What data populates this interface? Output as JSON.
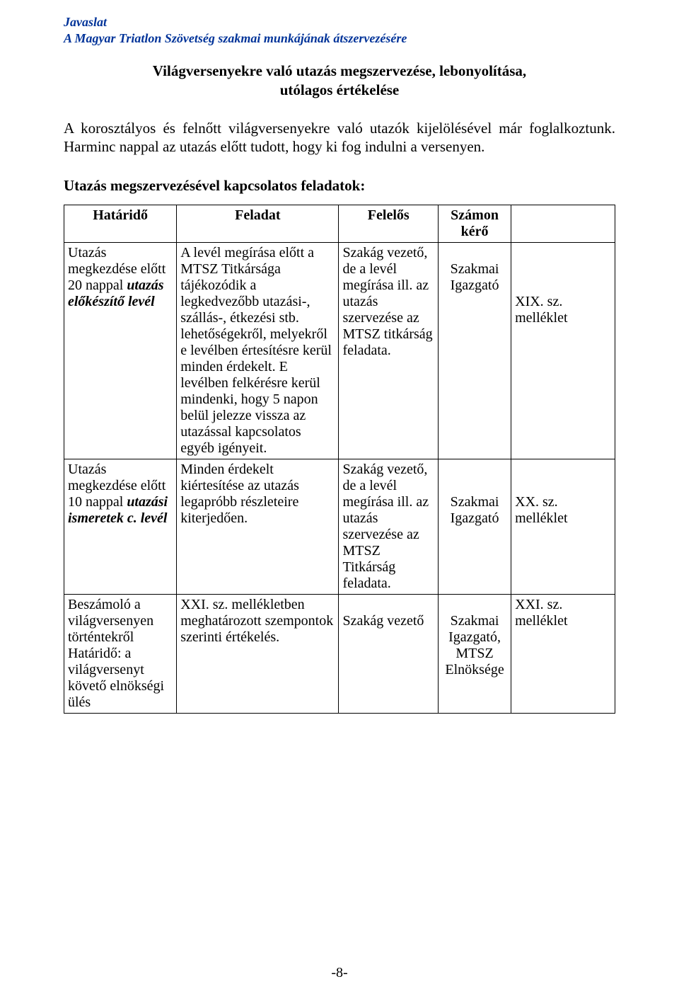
{
  "header": {
    "line1": "Javaslat",
    "line2": "A Magyar Triatlon Szövetség szakmai munkájának átszervezésére"
  },
  "title": {
    "line1": "Világversenyekre való utazás megszervezése, lebonyolítása,",
    "line2": "utólagos értékelése"
  },
  "intro": "A korosztályos és felnőtt világversenyekre való utazók kijelölésével már foglalkoztunk. Harminc nappal az utazás előtt tudott, hogy ki fog indulni a versenyen.",
  "tasks_heading": "Utazás megszervezésével kapcsolatos feladatok:",
  "table": {
    "headers": {
      "hatarido": "Határidő",
      "feladat": "Feladat",
      "felelos": "Felelős",
      "szamon": "Számon kérő",
      "mell": ""
    },
    "rows": [
      {
        "hatarido_plain": "Utazás megkezdése előtt 20 nappal",
        "hatarido_em": "utazás előkészítő levél",
        "feladat": "A levél megírása előtt a MTSZ Titkársága tájékozódik a legkedvezőbb utazási-, szállás-, étkezési stb. lehetőségekről, melyekről e levélben értesítésre kerül minden érdekelt. E levélben felkérésre kerül mindenki, hogy 5 napon belül jelezze vissza az utazással kapcsolatos egyéb igényeit.",
        "felelos": "Szakág vezető, de a levél megírása ill. az utazás szervezése az MTSZ titkárság feladata.",
        "szamon": "Szakmai Igazgató",
        "mell": "XIX. sz. melléklet"
      },
      {
        "hatarido_plain": "Utazás megkezdése előtt 10 nappal",
        "hatarido_em": "utazási ismeretek c. levél",
        "feladat": "Minden érdekelt kiértesítése az utazás legapróbb részleteire kiterjedően.",
        "felelos": "Szakág vezető, de a levél megírása ill. az utazás szervezése az MTSZ Titkárság feladata.",
        "szamon": "Szakmai Igazgató",
        "mell": "XX. sz. melléklet"
      },
      {
        "hatarido_plain": "Beszámoló a világversenyen történtekről Határidő: a világversenyt követő elnökségi ülés",
        "hatarido_em": "",
        "feladat": "XXI. sz. mellékletben meghatározott szempontok szerinti értékelés.",
        "felelos": "Szakág vezető",
        "szamon": "Szakmai Igazgató, MTSZ Elnöksége",
        "mell": "XXI. sz. melléklet"
      }
    ]
  },
  "page_number": "-8-",
  "colors": {
    "header_text": "#003399",
    "body_text": "#000000",
    "background": "#ffffff",
    "border": "#000000"
  },
  "fonts": {
    "body_family": "Times New Roman",
    "header_style": "italic bold",
    "title_size_pt": 16,
    "body_size_pt": 15
  }
}
